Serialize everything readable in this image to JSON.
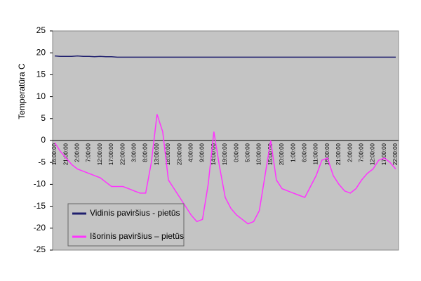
{
  "chart_data": {
    "type": "line",
    "y_label": "Temperatūra C",
    "categories": [
      "16:00:00",
      null,
      "21:00:00",
      null,
      "2:00:00",
      null,
      "7:00:00",
      null,
      "12:00:00",
      null,
      "17:00:00",
      null,
      "22:00:00",
      null,
      "3:00:00",
      null,
      "8:00:00",
      null,
      "13:00:00",
      null,
      "18:00:00",
      null,
      "23:00:00",
      null,
      "4:00:00",
      null,
      "9:00:00",
      null,
      "14:00:00",
      null,
      "19:00:00",
      null,
      "0:00:00",
      null,
      "5:00:00",
      null,
      "10:00:00",
      null,
      "15:00:00",
      null,
      "20:00:00",
      null,
      "1:00:00",
      null,
      "6:00:00",
      null,
      "11:00:00",
      null,
      "16:00:00",
      null,
      "21:00:00",
      null,
      "2:00:00",
      null,
      "7:00:00",
      null,
      "12:00:00",
      null,
      "17:00:00",
      null,
      "22:00:00"
    ],
    "series": [
      {
        "name": "Vidinis paviršius - pietūs",
        "color": "#1f1f6e",
        "values": [
          19.3,
          19.2,
          19.2,
          19.2,
          19.3,
          19.2,
          19.2,
          19.1,
          19.2,
          19.1,
          19.1,
          19,
          19,
          19,
          19,
          19,
          19,
          19,
          19,
          19,
          19,
          19,
          19,
          19,
          19,
          19,
          19,
          19,
          19,
          19,
          19,
          19,
          19,
          19,
          19,
          19,
          19,
          19,
          19,
          19,
          19,
          19,
          19,
          19,
          19,
          19,
          19,
          19,
          19,
          19,
          19,
          19,
          19,
          19,
          19,
          19,
          19,
          19,
          19,
          19,
          19
        ]
      },
      {
        "name": "Išorinis paviršius – pietūs",
        "color": "#ff33ff",
        "values": [
          -0.5,
          -2.5,
          -4,
          -5.5,
          -6.5,
          -7,
          -7.5,
          -8,
          -8.5,
          -9.5,
          -10.5,
          -10.5,
          -10.5,
          -11,
          -11.5,
          -12,
          -12,
          -5,
          6,
          2,
          -9,
          -11,
          -13,
          -15,
          -17,
          -18.5,
          -18,
          -10,
          2,
          -6,
          -13,
          -15.5,
          -17,
          -18,
          -19,
          -18.5,
          -16,
          -8,
          0,
          -9,
          -11,
          -11.5,
          -12,
          -12.5,
          -13,
          -10.5,
          -8,
          -4.5,
          -4,
          -8,
          -10,
          -11.5,
          -12,
          -11,
          -9,
          -7.5,
          -6.5,
          -4.5,
          -4,
          -5,
          -6.5
        ]
      }
    ],
    "ylim": [
      -25,
      25
    ],
    "yticks": [
      -25,
      -20,
      -15,
      -10,
      -5,
      0,
      5,
      10,
      15,
      20,
      25
    ],
    "grid": false,
    "plot_color": "#c4c4c4"
  }
}
